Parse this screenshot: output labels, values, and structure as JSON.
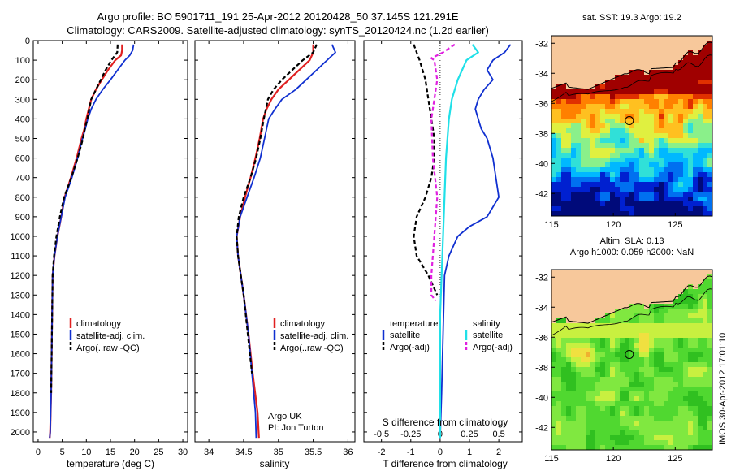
{
  "title": {
    "line1": "Argo profile: BO 5901711_191 25-Apr-2012 20120428_50 37.145S 121.291E",
    "line2": "Climatology: CARS2009. Satellite-adjusted climatology: synTS_20120424.nc (1.2d earlier)"
  },
  "colors": {
    "climatology": "#e02020",
    "satellite": "#1030d0",
    "argo": "#000000",
    "sal_satellite": "#20e0e8",
    "sal_argo": "#e020e0",
    "land": "#f7c89b"
  },
  "chart_data": [
    {
      "type": "line",
      "panel": "temperature",
      "xlabel": "temperature (deg C)",
      "xlim": [
        -1,
        31
      ],
      "ylim": [
        2050,
        0
      ],
      "xticks": [
        "0",
        "5",
        "10",
        "15",
        "20",
        "25",
        "30"
      ],
      "yticks": [
        "0",
        "100",
        "200",
        "300",
        "400",
        "500",
        "600",
        "700",
        "800",
        "900",
        "1000",
        "1100",
        "1200",
        "1300",
        "1400",
        "1500",
        "1600",
        "1700",
        "1800",
        "1900",
        "2000"
      ],
      "legend": [
        "climatology",
        "satellite-adj. clim.",
        "Argo(..raw -QC)"
      ],
      "series": [
        {
          "name": "climatology",
          "x": [
            17.4,
            17.4,
            17.2,
            16,
            14.5,
            13.2,
            12,
            11,
            10.5,
            10,
            9.6,
            9,
            8,
            6.8,
            5.5,
            4.8,
            4,
            3.4,
            3,
            2.9,
            2.8,
            2.7,
            2.6,
            2.5,
            2.4
          ],
          "y": [
            20,
            50,
            75,
            100,
            150,
            200,
            250,
            300,
            350,
            400,
            450,
            500,
            600,
            700,
            800,
            900,
            1000,
            1100,
            1200,
            1400,
            1600,
            1800,
            1900,
            2000,
            2030
          ]
        },
        {
          "name": "satellite-adj. clim.",
          "x": [
            19.8,
            19.6,
            19,
            18,
            16.5,
            15,
            13.4,
            12,
            11,
            10.3,
            9.8,
            9.2,
            8.2,
            7,
            5.6,
            4.8,
            4,
            3.4,
            3,
            2.9,
            2.8,
            2.7,
            2.6,
            2.5,
            2.4
          ],
          "y": [
            20,
            50,
            75,
            100,
            150,
            200,
            250,
            300,
            350,
            400,
            450,
            500,
            600,
            700,
            800,
            900,
            1000,
            1100,
            1200,
            1400,
            1600,
            1800,
            1900,
            2000,
            2030
          ]
        },
        {
          "name": "Argo(..raw -QC)",
          "x": [
            16.5,
            16.4,
            15.2,
            14,
            13,
            12,
            11,
            10.6,
            10.2,
            9.7,
            9.3,
            8.2,
            6.9,
            5.4,
            4.5,
            3.8,
            3.3,
            3,
            2.9,
            2.8,
            2.7
          ],
          "y": [
            20,
            60,
            100,
            150,
            200,
            250,
            300,
            350,
            400,
            450,
            500,
            600,
            700,
            800,
            900,
            1000,
            1100,
            1200,
            1400,
            1600,
            1800
          ]
        }
      ]
    },
    {
      "type": "line",
      "panel": "salinity",
      "xlabel": "salinity",
      "xlim": [
        33.8,
        36.1
      ],
      "ylim": [
        2050,
        0
      ],
      "xticks": [
        "34",
        "34.5",
        "35",
        "35.5",
        "36"
      ],
      "legend": [
        "climatology",
        "satellite-adj. clim.",
        "Argo(..raw -QC)"
      ],
      "annotation": {
        "line1": "Argo UK",
        "line2": "PI: Jon Turton"
      },
      "series": [
        {
          "name": "climatology",
          "x": [
            35.5,
            35.5,
            35.45,
            35.3,
            35.15,
            35.0,
            34.9,
            34.83,
            34.78,
            34.73,
            34.67,
            34.6,
            34.52,
            34.45,
            34.4,
            34.42,
            34.5,
            34.57,
            34.63,
            34.7,
            34.72
          ],
          "y": [
            20,
            60,
            100,
            150,
            200,
            250,
            300,
            350,
            400,
            500,
            600,
            700,
            800,
            900,
            1000,
            1100,
            1300,
            1500,
            1700,
            1900,
            2030
          ]
        },
        {
          "name": "satellite-adj. clim.",
          "x": [
            35.77,
            35.82,
            35.7,
            35.55,
            35.4,
            35.25,
            35.05,
            34.95,
            34.86,
            34.8,
            34.74,
            34.65,
            34.55,
            34.45,
            34.4,
            34.42,
            34.5,
            34.57,
            34.62,
            34.67,
            34.68
          ],
          "y": [
            20,
            60,
            100,
            150,
            200,
            250,
            300,
            350,
            400,
            500,
            600,
            700,
            800,
            900,
            1000,
            1100,
            1300,
            1500,
            1700,
            1900,
            2030
          ]
        },
        {
          "name": "Argo(..raw -QC)",
          "x": [
            35.55,
            35.5,
            35.35,
            35.2,
            35.05,
            34.93,
            34.85,
            34.79,
            34.74,
            34.68,
            34.6,
            34.5,
            34.43,
            34.4,
            34.42,
            34.5,
            34.56,
            34.62
          ],
          "y": [
            20,
            60,
            100,
            150,
            200,
            250,
            300,
            400,
            500,
            600,
            700,
            800,
            900,
            1000,
            1100,
            1300,
            1500,
            1700
          ]
        }
      ]
    },
    {
      "type": "line",
      "panel": "difference",
      "xlabel": "T difference from climatology",
      "xlabel2": "S difference from climatology",
      "xlim": [
        -2.6,
        2.8
      ],
      "ylim": [
        2050,
        0
      ],
      "xticks": [
        "-2",
        "-1",
        "0",
        "1",
        "2"
      ],
      "xticks2": [
        "-0.5",
        "-0.25",
        "0",
        "0.25",
        "0.5"
      ],
      "legend_temperature": {
        "header": "temperature",
        "items": [
          "satellite",
          "Argo(-adj)"
        ]
      },
      "legend_salinity": {
        "header": "salinity",
        "items": [
          "satellite",
          "Argo(-adj)"
        ]
      },
      "series": [
        {
          "name": "temperature satellite",
          "x": [
            2.4,
            2.2,
            1.8,
            1.6,
            1.8,
            1.5,
            1.3,
            1.2,
            1.3,
            1.4,
            1.6,
            1.8,
            2.0,
            1.6,
            1.0,
            0.6,
            0.3,
            0.15,
            0.1,
            0.05,
            0.0
          ],
          "y": [
            20,
            60,
            100,
            150,
            200,
            250,
            300,
            350,
            400,
            450,
            500,
            600,
            800,
            900,
            950,
            1000,
            1100,
            1200,
            1500,
            1800,
            2030
          ]
        },
        {
          "name": "temperature Argo(-adj)",
          "x": [
            -0.9,
            -0.8,
            -0.7,
            -0.5,
            -0.4,
            -0.3,
            -0.2,
            -0.2,
            -0.3,
            -0.5,
            -0.8,
            -0.9,
            -0.8,
            -0.4,
            -0.1
          ],
          "y": [
            20,
            60,
            100,
            200,
            300,
            400,
            500,
            600,
            700,
            800,
            900,
            1000,
            1100,
            1200,
            1300
          ]
        },
        {
          "name": "salinity satellite",
          "x": [
            1.1,
            1.3,
            0.9,
            0.6,
            0.4,
            0.3,
            0.2,
            0.15,
            0.1,
            0.05,
            0.0,
            0.0,
            0.0,
            0.0
          ],
          "y": [
            20,
            60,
            100,
            200,
            300,
            400,
            600,
            800,
            1000,
            1200,
            1400,
            1600,
            1800,
            2030
          ]
        },
        {
          "name": "salinity Argo(-adj)",
          "x": [
            0.5,
            0.1,
            -0.3,
            -0.2,
            -0.1,
            -0.2,
            -0.3,
            -0.25,
            -0.1,
            -0.2,
            -0.3,
            -0.3,
            -0.15
          ],
          "y": [
            20,
            60,
            90,
            100,
            200,
            300,
            400,
            600,
            800,
            1000,
            1200,
            1300,
            1330
          ]
        }
      ]
    }
  ],
  "map_sst": {
    "title": "sat. SST: 19.3 Argo: 19.2",
    "xticks": [
      "115",
      "120",
      "125"
    ],
    "yticks": [
      "-32",
      "-34",
      "-36",
      "-38",
      "-40",
      "-42"
    ],
    "xlim": [
      115,
      128
    ],
    "ylim": [
      -43.5,
      -31.5
    ],
    "marker": {
      "lon": 121.29,
      "lat": -37.15
    },
    "colormap": [
      "#000a7a",
      "#0020d0",
      "#0070f0",
      "#00b8ff",
      "#30e0d8",
      "#8af08a",
      "#e0f040",
      "#ffc020",
      "#ff8000",
      "#e03000",
      "#a00000"
    ]
  },
  "map_sla": {
    "title1": "Altim. SLA: 0.13",
    "title2": "Argo h1000: 0.059 h2000: NaN",
    "xticks": [
      "115",
      "120",
      "125"
    ],
    "yticks": [
      "-32",
      "-34",
      "-36",
      "-38",
      "-40",
      "-42"
    ],
    "xlim": [
      115,
      128
    ],
    "ylim": [
      -43.5,
      -31.5
    ],
    "marker": {
      "lon": 121.29,
      "lat": -37.15
    },
    "colormap": [
      "#30c020",
      "#50d830",
      "#80e840",
      "#c8f040",
      "#f0e040",
      "#f0b030",
      "#e07020"
    ]
  },
  "footer": "IMOS 30-Apr-2012 17:01:10"
}
